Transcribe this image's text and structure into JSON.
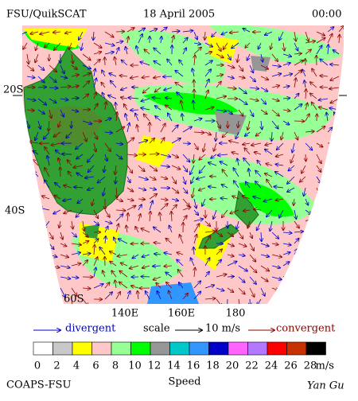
{
  "header": {
    "left": "FSU/QuikSCAT",
    "date": "18 April 2005",
    "time": "00:00"
  },
  "map": {
    "lat_labels": [
      "20S",
      "40S",
      "60S"
    ],
    "lon_labels": [
      "140E",
      "160E",
      "180"
    ]
  },
  "legend": {
    "divergent": "divergent",
    "scale": "scale",
    "scale_value": "10 m/s",
    "convergent": "convergent"
  },
  "colorbar": {
    "ticks": [
      0,
      2,
      4,
      6,
      8,
      10,
      12,
      14,
      16,
      18,
      20,
      22,
      24,
      26,
      28
    ],
    "unit": "m/s",
    "label": "Speed",
    "colors": [
      "#ffffff",
      "#c8c8c8",
      "#ffff00",
      "#ffc8c8",
      "#96ff96",
      "#00ff00",
      "#969696",
      "#00c8c8",
      "#3296ff",
      "#0000c8",
      "#ff64ff",
      "#b478ff",
      "#ff0000",
      "#c83200",
      "#000000"
    ]
  },
  "footer": {
    "left": "COAPS-FSU",
    "author": "Yan Gu"
  }
}
